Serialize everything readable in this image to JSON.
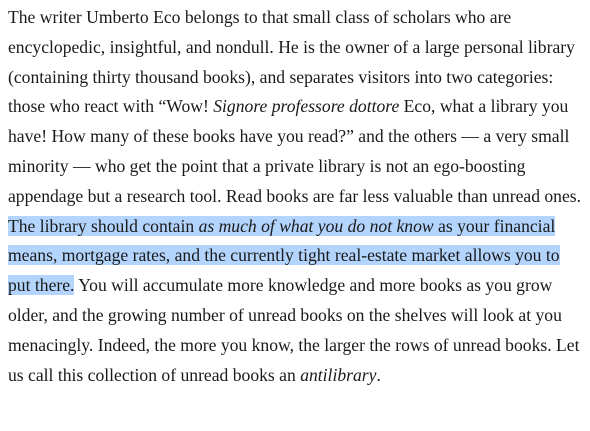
{
  "document": {
    "paragraph": {
      "s1": "The writer Umberto Eco belongs to that small class of scholars who are encyclopedic, insightful, and nondull. He is the owner of a large personal library (containing thirty thousand books), and separates visitors into two categories: those who react with “Wow! ",
      "s1_italic": "Signore professore dottore",
      "s2": " Eco, what a library you have! How many of these books have you read?” and the others — a very small minority — who get the point that a private library is not an ego-boosting appendage but a research tool. Read books are far less valuable than unread ones. ",
      "hl1": "The library should contain ",
      "hl_italic": "as much of what you do not know",
      "hl2": " as your financial means, mortgage rates, and the currently tight real-estate market allows you to put there.",
      "s3": " You will accumulate more knowledge and more books as you grow older, and the growing number of unread books on the shelves will look at you menacingly. Indeed, the more you know, the larger the rows of unread books. Let us call this collection of unread books an ",
      "s3_italic": "antilibrary",
      "s4": "."
    },
    "selection_color": "#b3d4fc"
  }
}
